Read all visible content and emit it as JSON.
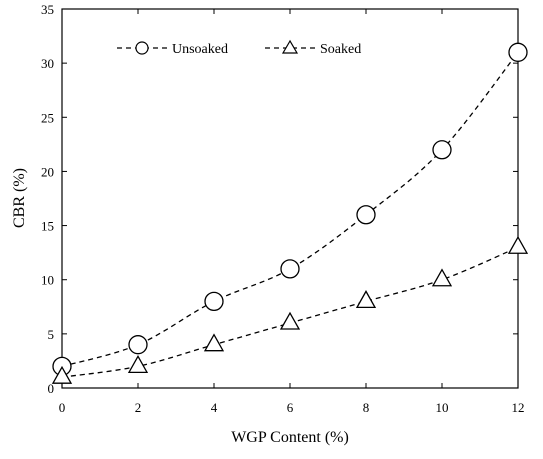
{
  "chart_data": {
    "type": "line",
    "xlabel": "WGP Content (%)",
    "ylabel": "CBR (%)",
    "xlim": [
      0,
      12
    ],
    "ylim": [
      0,
      35
    ],
    "xticks": [
      0,
      2,
      4,
      6,
      8,
      10,
      12
    ],
    "yticks": [
      0,
      5,
      10,
      15,
      20,
      25,
      30,
      35
    ],
    "grid": false,
    "legend_position": "top-left",
    "series": [
      {
        "name": "Unsoaked",
        "marker": "circle",
        "line_style": "dashed",
        "x": [
          0,
          2,
          4,
          6,
          8,
          10,
          12
        ],
        "y": [
          2,
          4,
          8,
          11,
          16,
          22,
          31
        ]
      },
      {
        "name": "Soaked",
        "marker": "triangle",
        "line_style": "dashed",
        "x": [
          0,
          2,
          4,
          6,
          8,
          10,
          12
        ],
        "y": [
          1,
          2,
          4,
          6,
          8,
          10,
          13
        ]
      }
    ]
  }
}
